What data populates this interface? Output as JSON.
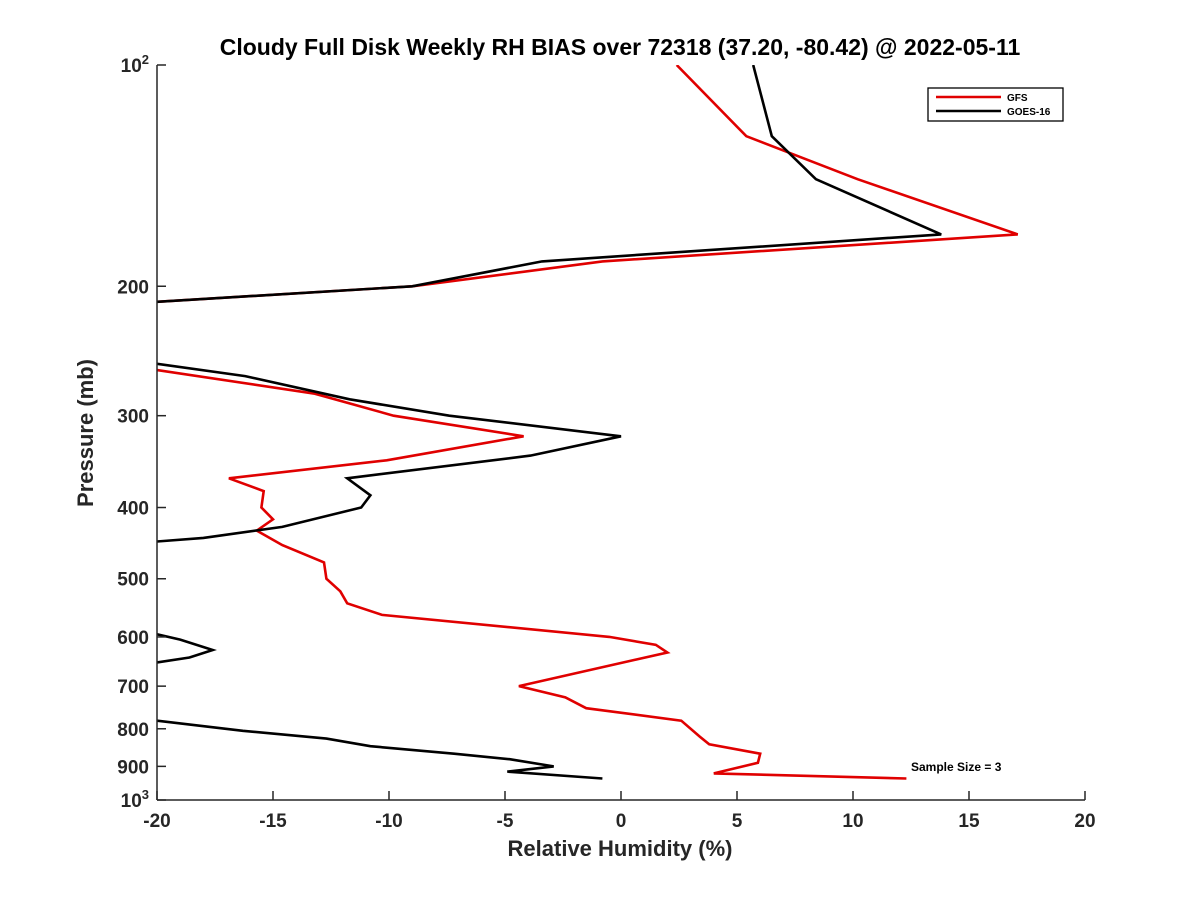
{
  "chart_data": {
    "type": "line",
    "title": "Cloudy Full Disk Weekly RH BIAS over 72318 (37.20, -80.42) @ 2022-05-11",
    "xlabel": "Relative Humidity (%)",
    "ylabel": "Pressure (mb)",
    "xlim": [
      -20,
      20
    ],
    "ylim": [
      100,
      1000
    ],
    "yscale": "log",
    "y_reversed": true,
    "grid": false,
    "x_ticks": [
      -20,
      -15,
      -10,
      -5,
      0,
      5,
      10,
      15,
      20
    ],
    "x_tick_labels": [
      "-20",
      "-15",
      "-10",
      "-5",
      "0",
      "5",
      "10",
      "15",
      "20"
    ],
    "y_ticks": [
      {
        "value": 100,
        "base": "10",
        "exp": "2"
      },
      {
        "value": 200,
        "label": "200"
      },
      {
        "value": 300,
        "label": "300"
      },
      {
        "value": 400,
        "label": "400"
      },
      {
        "value": 500,
        "label": "500"
      },
      {
        "value": 600,
        "label": "600"
      },
      {
        "value": 700,
        "label": "700"
      },
      {
        "value": 800,
        "label": "800"
      },
      {
        "value": 900,
        "label": "900"
      },
      {
        "value": 1000,
        "base": "10",
        "exp": "3"
      }
    ],
    "legend": {
      "location": "top-right"
    },
    "annotation": "Sample Size = 3",
    "series": [
      {
        "name": "GFS",
        "color": "#e00000",
        "segments": [
          [
            [
              2.4,
              100
            ],
            [
              5.4,
              125
            ],
            [
              10.2,
              143
            ],
            [
              17.1,
              170
            ],
            [
              -0.8,
              185
            ],
            [
              -9.0,
              200
            ],
            [
              -20,
              210
            ]
          ],
          [
            [
              -20,
              260
            ],
            [
              -13.2,
              280
            ],
            [
              -9.8,
              300
            ],
            [
              -4.2,
              320
            ],
            [
              -10.1,
              345
            ],
            [
              -16.9,
              365
            ],
            [
              -15.4,
              380
            ],
            [
              -15.5,
              400
            ],
            [
              -15.0,
              415
            ],
            [
              -15.7,
              430
            ],
            [
              -14.6,
              450
            ],
            [
              -12.8,
              475
            ],
            [
              -12.7,
              500
            ],
            [
              -12.1,
              520
            ],
            [
              -11.8,
              540
            ],
            [
              -10.3,
              560
            ],
            [
              -0.5,
              600
            ],
            [
              1.5,
              615
            ],
            [
              2.0,
              630
            ],
            [
              -4.4,
              700
            ],
            [
              -2.4,
              725
            ],
            [
              -1.5,
              750
            ],
            [
              2.6,
              780
            ],
            [
              3.4,
              820
            ],
            [
              3.8,
              840
            ],
            [
              6.0,
              865
            ],
            [
              5.9,
              890
            ],
            [
              4.0,
              920
            ],
            [
              12.3,
              935
            ]
          ]
        ]
      },
      {
        "name": "GOES-16",
        "color": "#000000",
        "segments": [
          [
            [
              5.7,
              100
            ],
            [
              6.5,
              125
            ],
            [
              8.4,
              143
            ],
            [
              13.8,
              170
            ],
            [
              -3.4,
              185
            ],
            [
              -9.0,
              200
            ],
            [
              -20,
              210
            ]
          ],
          [
            [
              -20,
              255
            ],
            [
              -16.2,
              265
            ],
            [
              -11.7,
              285
            ],
            [
              -7.4,
              300
            ],
            [
              0,
              320
            ],
            [
              -3.9,
              340
            ],
            [
              -11.8,
              365
            ],
            [
              -10.8,
              385
            ],
            [
              -11.2,
              400
            ],
            [
              -14.6,
              425
            ],
            [
              -18.0,
              440
            ],
            [
              -20,
              445
            ]
          ],
          [
            [
              -20,
              595
            ],
            [
              -19.0,
              605
            ],
            [
              -17.6,
              625
            ],
            [
              -18.6,
              640
            ],
            [
              -20,
              650
            ]
          ],
          [
            [
              -20,
              780
            ],
            [
              -16.3,
              805
            ],
            [
              -12.7,
              825
            ],
            [
              -10.8,
              845
            ],
            [
              -7.2,
              865
            ],
            [
              -4.8,
              880
            ],
            [
              -2.9,
              900
            ],
            [
              -4.9,
              915
            ],
            [
              -0.8,
              935
            ]
          ]
        ]
      }
    ]
  }
}
